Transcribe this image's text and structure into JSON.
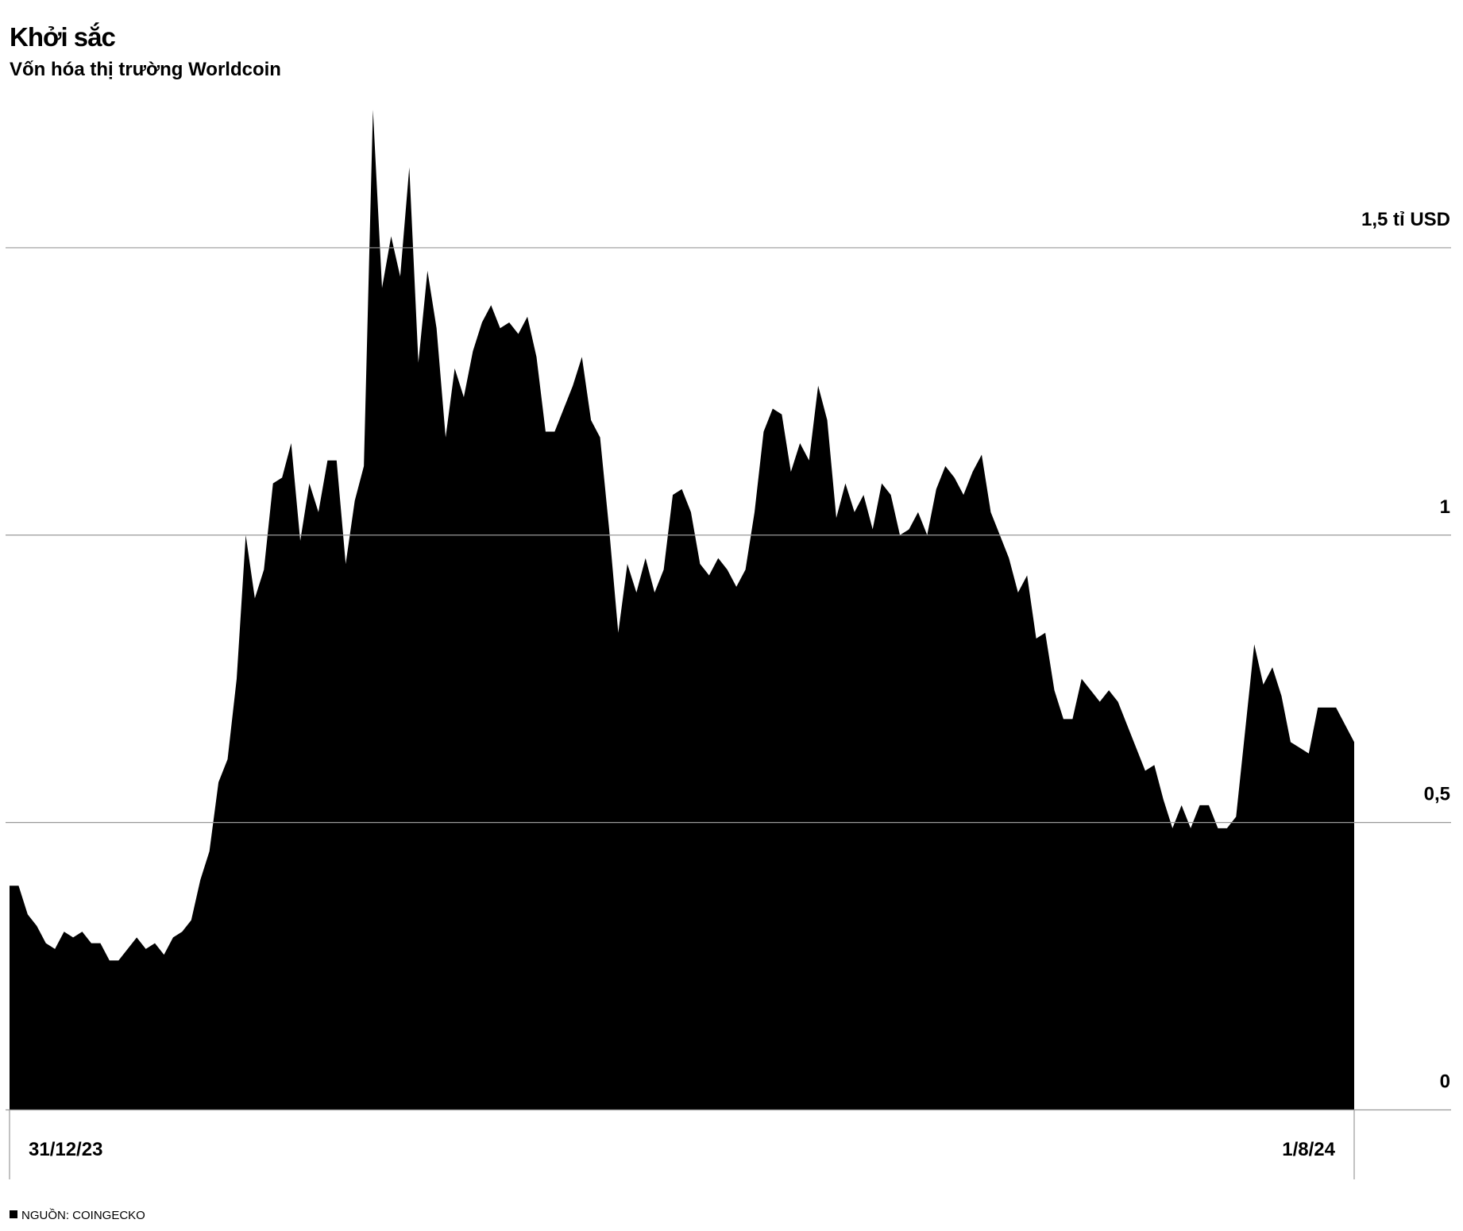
{
  "chart_data": {
    "type": "area",
    "title": "Khởi sắc",
    "subtitle": "Vốn hóa thị trường Worldcoin",
    "source": "NGUỒN: COINGECKO",
    "color": "#000000",
    "grid": true,
    "ylim": [
      0,
      1.8
    ],
    "yticks": [
      0,
      {
        "value": 0.5,
        "label": "0,5"
      },
      1,
      {
        "value": 1.5,
        "label": "1,5 tỉ USD"
      }
    ],
    "categories": [
      "31/12/23",
      null,
      null,
      null,
      null,
      null,
      null,
      null,
      null,
      null,
      null,
      null,
      null,
      null,
      null,
      null,
      null,
      null,
      null,
      null,
      null,
      null,
      null,
      null,
      null,
      null,
      null,
      null,
      null,
      null,
      null,
      null,
      null,
      null,
      null,
      null,
      null,
      null,
      null,
      null,
      null,
      null,
      null,
      null,
      null,
      null,
      null,
      null,
      null,
      null,
      null,
      null,
      null,
      null,
      null,
      null,
      null,
      null,
      null,
      null,
      null,
      null,
      null,
      null,
      null,
      null,
      null,
      null,
      null,
      null,
      null,
      null,
      null,
      null,
      null,
      null,
      null,
      null,
      null,
      null,
      null,
      null,
      null,
      null,
      null,
      null,
      null,
      null,
      null,
      null,
      null,
      null,
      null,
      null,
      null,
      null,
      null,
      null,
      null,
      null,
      null,
      null,
      null,
      null,
      null,
      null,
      null,
      null,
      null,
      null,
      null,
      null,
      null,
      null,
      null,
      null,
      null,
      null,
      null,
      null,
      null,
      null,
      null,
      null,
      null,
      null,
      null,
      null,
      null,
      null,
      null,
      null,
      null,
      null,
      null,
      null,
      null,
      null,
      null,
      null,
      null,
      null,
      null,
      null,
      null,
      null,
      null,
      null,
      "1/8/24"
    ],
    "values": [
      0.39,
      0.39,
      0.34,
      0.32,
      0.29,
      0.28,
      0.31,
      0.3,
      0.31,
      0.29,
      0.29,
      0.26,
      0.26,
      0.28,
      0.3,
      0.28,
      0.29,
      0.27,
      0.3,
      0.31,
      0.33,
      0.4,
      0.45,
      0.57,
      0.61,
      0.75,
      1.0,
      0.89,
      0.94,
      1.09,
      1.1,
      1.16,
      0.99,
      1.09,
      1.04,
      1.13,
      1.13,
      0.95,
      1.06,
      1.12,
      1.74,
      1.43,
      1.52,
      1.45,
      1.64,
      1.3,
      1.46,
      1.36,
      1.17,
      1.29,
      1.24,
      1.32,
      1.37,
      1.4,
      1.36,
      1.37,
      1.35,
      1.38,
      1.31,
      1.18,
      1.18,
      1.22,
      1.26,
      1.31,
      1.2,
      1.17,
      1.01,
      0.83,
      0.95,
      0.9,
      0.96,
      0.9,
      0.94,
      1.07,
      1.08,
      1.04,
      0.95,
      0.93,
      0.96,
      0.94,
      0.91,
      0.94,
      1.04,
      1.18,
      1.22,
      1.21,
      1.11,
      1.16,
      1.13,
      1.26,
      1.2,
      1.03,
      1.09,
      1.04,
      1.07,
      1.01,
      1.09,
      1.07,
      1.0,
      1.01,
      1.04,
      1.0,
      1.08,
      1.12,
      1.1,
      1.07,
      1.11,
      1.14,
      1.04,
      1.0,
      0.96,
      0.9,
      0.93,
      0.82,
      0.83,
      0.73,
      0.68,
      0.68,
      0.75,
      0.73,
      0.71,
      0.73,
      0.71,
      0.67,
      0.63,
      0.59,
      0.6,
      0.54,
      0.49,
      0.53,
      0.49,
      0.53,
      0.53,
      0.49,
      0.49,
      0.51,
      0.66,
      0.81,
      0.74,
      0.77,
      0.72,
      0.64,
      0.63,
      0.62,
      0.7,
      0.7,
      0.7,
      0.67,
      0.64
    ]
  }
}
